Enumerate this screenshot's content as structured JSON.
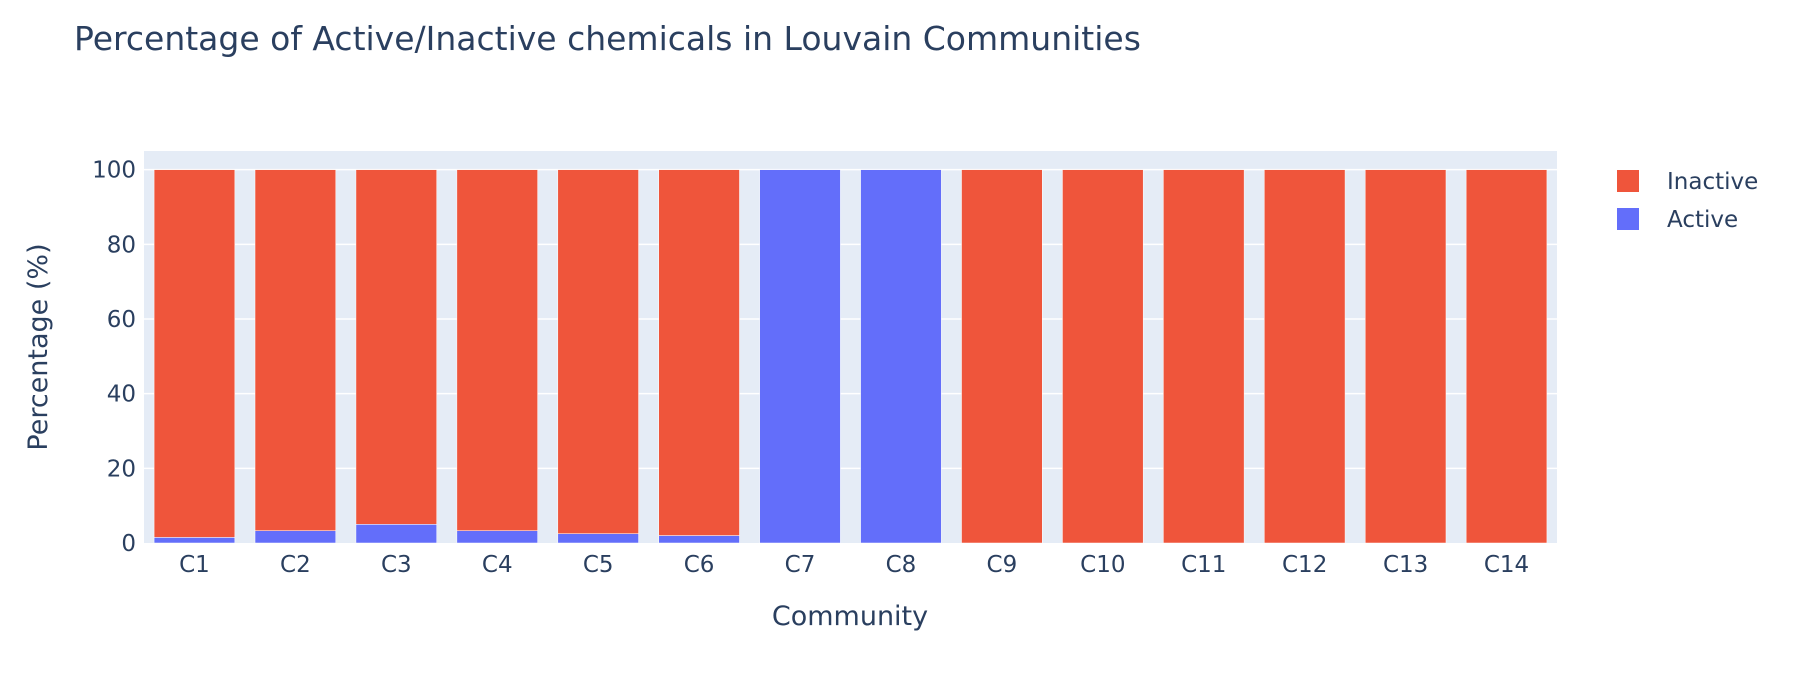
{
  "chart_data": {
    "type": "bar",
    "barmode": "stack",
    "title": "Percentage of Active/Inactive chemicals in Louvain Communities",
    "xlabel": "Community",
    "ylabel": "Percentage (%)",
    "ylim": [
      0,
      105
    ],
    "yticks": [
      0,
      20,
      40,
      60,
      80,
      100
    ],
    "grid": true,
    "legend_position": "top-right",
    "categories": [
      "C1",
      "C2",
      "C3",
      "C4",
      "C5",
      "C6",
      "C7",
      "C8",
      "C9",
      "C10",
      "C11",
      "C12",
      "C13",
      "C14"
    ],
    "series": [
      {
        "name": "Active",
        "color": "#636efa",
        "values": [
          1.5,
          3.3,
          5.0,
          3.3,
          2.5,
          2.0,
          100,
          100,
          0,
          0,
          0,
          0,
          0,
          0
        ]
      },
      {
        "name": "Inactive",
        "color": "#ef553b",
        "values": [
          98.5,
          96.7,
          95.0,
          96.7,
          97.5,
          98.0,
          0,
          0,
          100,
          100,
          100,
          100,
          100,
          100
        ]
      }
    ],
    "legend_order": [
      "Inactive",
      "Active"
    ],
    "plot_background": "#e5ecf6"
  }
}
